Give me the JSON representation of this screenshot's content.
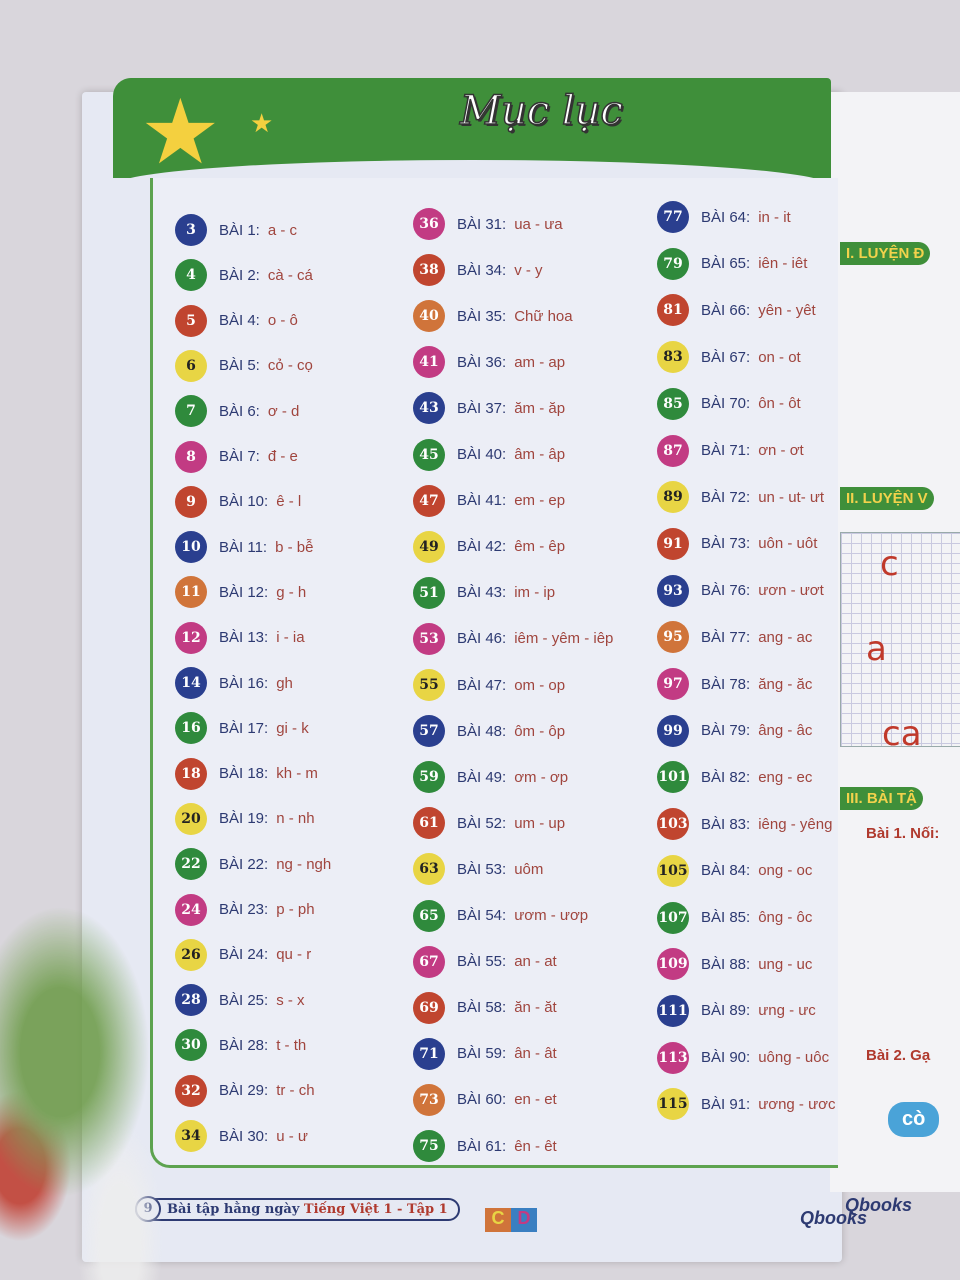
{
  "title": "Mục lục",
  "colors": {
    "navy": "#2a3f8f",
    "green": "#2f8a3c",
    "red": "#c0452f",
    "yellow": "#e8d544",
    "magenta": "#c23b83",
    "orange": "#d0743a"
  },
  "columns": [
    [
      [
        "3",
        "BÀI 1:",
        "a - c",
        "navy"
      ],
      [
        "4",
        "BÀI 2:",
        "cà - cá",
        "green"
      ],
      [
        "5",
        "BÀI 4:",
        "o - ô",
        "red"
      ],
      [
        "6",
        "BÀI 5:",
        "cỏ - cọ",
        "yellow"
      ],
      [
        "7",
        "BÀI 6:",
        "ơ - d",
        "green"
      ],
      [
        "8",
        "BÀI 7:",
        "đ - e",
        "magenta"
      ],
      [
        "9",
        "BÀI 10:",
        "ê - l",
        "red"
      ],
      [
        "10",
        "BÀI 11:",
        "b - bễ",
        "navy"
      ],
      [
        "11",
        "BÀI 12:",
        "g - h",
        "orange"
      ],
      [
        "12",
        "BÀI 13:",
        "i - ia",
        "magenta"
      ],
      [
        "14",
        "BÀI 16:",
        "gh",
        "navy"
      ],
      [
        "16",
        "BÀI 17:",
        "gi - k",
        "green"
      ],
      [
        "18",
        "BÀI 18:",
        "kh - m",
        "red"
      ],
      [
        "20",
        "BÀI 19:",
        "n - nh",
        "yellow"
      ],
      [
        "22",
        "BÀI 22:",
        "ng - ngh",
        "green"
      ],
      [
        "24",
        "BÀI 23:",
        "p - ph",
        "magenta"
      ],
      [
        "26",
        "BÀI 24:",
        "qu - r",
        "yellow"
      ],
      [
        "28",
        "BÀI 25:",
        "s - x",
        "navy"
      ],
      [
        "30",
        "BÀI 28:",
        "t - th",
        "green"
      ],
      [
        "32",
        "BÀI 29:",
        "tr - ch",
        "red"
      ],
      [
        "34",
        "BÀI 30:",
        "u - ư",
        "yellow"
      ]
    ],
    [
      [
        "36",
        "BÀI 31:",
        "ua - ưa",
        "magenta"
      ],
      [
        "38",
        "BÀI 34:",
        "v - y",
        "red"
      ],
      [
        "40",
        "BÀI 35:",
        "Chữ hoa",
        "orange"
      ],
      [
        "41",
        "BÀI 36:",
        "am - ap",
        "magenta"
      ],
      [
        "43",
        "BÀI 37:",
        "ăm - ăp",
        "navy"
      ],
      [
        "45",
        "BÀI 40:",
        "âm - âp",
        "green"
      ],
      [
        "47",
        "BÀI 41:",
        "em - ep",
        "red"
      ],
      [
        "49",
        "BÀI 42:",
        "êm - êp",
        "yellow"
      ],
      [
        "51",
        "BÀI 43:",
        "im - ip",
        "green"
      ],
      [
        "53",
        "BÀI 46:",
        "iêm - yêm - iêp",
        "magenta"
      ],
      [
        "55",
        "BÀI 47:",
        "om - op",
        "yellow"
      ],
      [
        "57",
        "BÀI 48:",
        "ôm - ôp",
        "navy"
      ],
      [
        "59",
        "BÀI 49:",
        "ơm - ơp",
        "green"
      ],
      [
        "61",
        "BÀI 52:",
        "um - up",
        "red"
      ],
      [
        "63",
        "BÀI 53:",
        "uôm",
        "yellow"
      ],
      [
        "65",
        "BÀI 54:",
        "ươm - ươp",
        "green"
      ],
      [
        "67",
        "BÀI 55:",
        "an - at",
        "magenta"
      ],
      [
        "69",
        "BÀI 58:",
        "ăn - ăt",
        "red"
      ],
      [
        "71",
        "BÀI 59:",
        "ân - ât",
        "navy"
      ],
      [
        "73",
        "BÀI 60:",
        "en - et",
        "orange"
      ],
      [
        "75",
        "BÀI 61:",
        "ên - êt",
        "green"
      ]
    ],
    [
      [
        "77",
        "BÀI 64:",
        "in - it",
        "navy"
      ],
      [
        "79",
        "BÀI 65:",
        "iên - iêt",
        "green"
      ],
      [
        "81",
        "BÀI 66:",
        "yên - yêt",
        "red"
      ],
      [
        "83",
        "BÀI 67:",
        "on - ot",
        "yellow"
      ],
      [
        "85",
        "BÀI 70:",
        "ôn - ôt",
        "green"
      ],
      [
        "87",
        "BÀI 71:",
        "ơn - ơt",
        "magenta"
      ],
      [
        "89",
        "BÀI 72:",
        "un - ut- ưt",
        "yellow"
      ],
      [
        "91",
        "BÀI 73:",
        "uôn - uôt",
        "red"
      ],
      [
        "93",
        "BÀI 76:",
        "ươn - ươt",
        "navy"
      ],
      [
        "95",
        "BÀI 77:",
        "ang - ac",
        "orange"
      ],
      [
        "97",
        "BÀI 78:",
        "ăng - ăc",
        "magenta"
      ],
      [
        "99",
        "BÀI 79:",
        "âng - âc",
        "navy"
      ],
      [
        "101",
        "BÀI 82:",
        "eng - ec",
        "green"
      ],
      [
        "103",
        "BÀI 83:",
        "iêng - yêng",
        "red"
      ],
      [
        "105",
        "BÀI 84:",
        "ong - oc",
        "yellow"
      ],
      [
        "107",
        "BÀI 85:",
        "ông - ôc",
        "green"
      ],
      [
        "109",
        "BÀI 88:",
        "ung - uc",
        "magenta"
      ],
      [
        "111",
        "BÀI 89:",
        "ưng - ưc",
        "navy"
      ],
      [
        "113",
        "BÀI 90:",
        "uông - uôc",
        "magenta"
      ],
      [
        "115",
        "BÀI 91:",
        "ương - ươc",
        "yellow"
      ]
    ]
  ],
  "footer": {
    "page": "9",
    "series": "Bài tập hằng ngày",
    "subject": "Tiếng Việt 1 - Tập 1",
    "logo_c": "C",
    "logo_d": "D",
    "brand": "Qbooks"
  },
  "right_page": {
    "section1": "I. LUYỆN Đ",
    "section2": "II. LUYỆN V",
    "letters": [
      "c",
      "a",
      "ca"
    ],
    "section3": "III. BÀI TẬ",
    "ex1": "Bài 1. Nối:",
    "ex2": "Bài 2. Gạ",
    "word": "cò",
    "brand": "Qbooks"
  }
}
